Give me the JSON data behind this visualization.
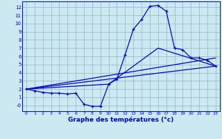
{
  "xlabel": "Graphe des températures (°c)",
  "bg_color": "#cce8f0",
  "line_color": "#0000cc",
  "grid_color": "#99bbcc",
  "xlim": [
    -0.5,
    23.5
  ],
  "ylim": [
    -0.7,
    12.7
  ],
  "yticks": [
    0,
    1,
    2,
    3,
    4,
    5,
    6,
    7,
    8,
    9,
    10,
    11,
    12
  ],
  "ytick_labels": [
    "-0",
    "1",
    "2",
    "3",
    "4",
    "5",
    "6",
    "7",
    "8",
    "9",
    "10",
    "11",
    "12"
  ],
  "xticks": [
    0,
    1,
    2,
    3,
    4,
    5,
    6,
    7,
    8,
    9,
    10,
    11,
    12,
    13,
    14,
    15,
    16,
    17,
    18,
    19,
    20,
    21,
    22,
    23
  ],
  "curve1_x": [
    0,
    1,
    2,
    3,
    4,
    5,
    6,
    7,
    8,
    9,
    10,
    11,
    12,
    13,
    14,
    15,
    16,
    17,
    18,
    19,
    20,
    21,
    22,
    23
  ],
  "curve1_y": [
    2.0,
    1.8,
    1.6,
    1.5,
    1.5,
    1.4,
    1.5,
    0.15,
    -0.1,
    -0.1,
    2.6,
    3.2,
    6.2,
    9.3,
    10.5,
    12.1,
    12.2,
    11.5,
    7.0,
    6.8,
    5.8,
    5.8,
    5.5,
    4.8
  ],
  "line2_x": [
    0,
    23
  ],
  "line2_y": [
    2.0,
    4.8
  ],
  "line3_x": [
    0,
    23
  ],
  "line3_y": [
    2.0,
    5.8
  ],
  "line4_x": [
    0,
    10,
    16,
    23
  ],
  "line4_y": [
    2.0,
    2.6,
    7.0,
    4.8
  ]
}
